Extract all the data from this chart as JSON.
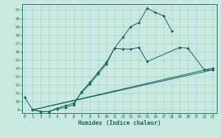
{
  "xlabel": "Humidex (Indice chaleur)",
  "bg_color": "#c8e8e0",
  "line_color": "#1a6b5a",
  "grid_color": "#a8d4cc",
  "xlim_min": -0.3,
  "xlim_max": 23.5,
  "ylim_min": 8.6,
  "ylim_max": 21.7,
  "yticks": [
    9,
    10,
    11,
    12,
    13,
    14,
    15,
    16,
    17,
    18,
    19,
    20,
    21
  ],
  "xticks": [
    0,
    1,
    2,
    3,
    4,
    5,
    6,
    7,
    8,
    9,
    10,
    11,
    12,
    13,
    14,
    15,
    16,
    17,
    18,
    19,
    20,
    21,
    22,
    23
  ],
  "curve1_x": [
    0,
    1,
    2,
    3,
    4,
    5,
    6,
    7,
    8,
    9,
    10,
    11,
    12,
    13,
    14,
    15,
    16,
    17,
    18
  ],
  "curve1_y": [
    10.5,
    9.0,
    8.8,
    8.8,
    9.1,
    9.3,
    9.6,
    11.2,
    12.3,
    13.5,
    14.7,
    16.4,
    17.7,
    19.0,
    19.5,
    21.2,
    20.7,
    20.3,
    18.5
  ],
  "curve2_x": [
    1,
    2,
    3,
    4,
    5,
    6,
    7,
    8,
    9,
    10,
    11,
    12,
    13,
    14,
    15,
    19,
    20,
    22,
    23
  ],
  "curve2_y": [
    9.0,
    8.8,
    8.8,
    9.2,
    9.5,
    9.8,
    11.1,
    12.1,
    13.3,
    14.5,
    16.4,
    16.3,
    16.3,
    16.5,
    14.8,
    16.5,
    16.4,
    13.8,
    13.8
  ],
  "curve3_x": [
    1,
    23
  ],
  "curve3_y": [
    9.0,
    13.8
  ],
  "curve4_x": [
    1,
    23
  ],
  "curve4_y": [
    9.0,
    14.0
  ]
}
